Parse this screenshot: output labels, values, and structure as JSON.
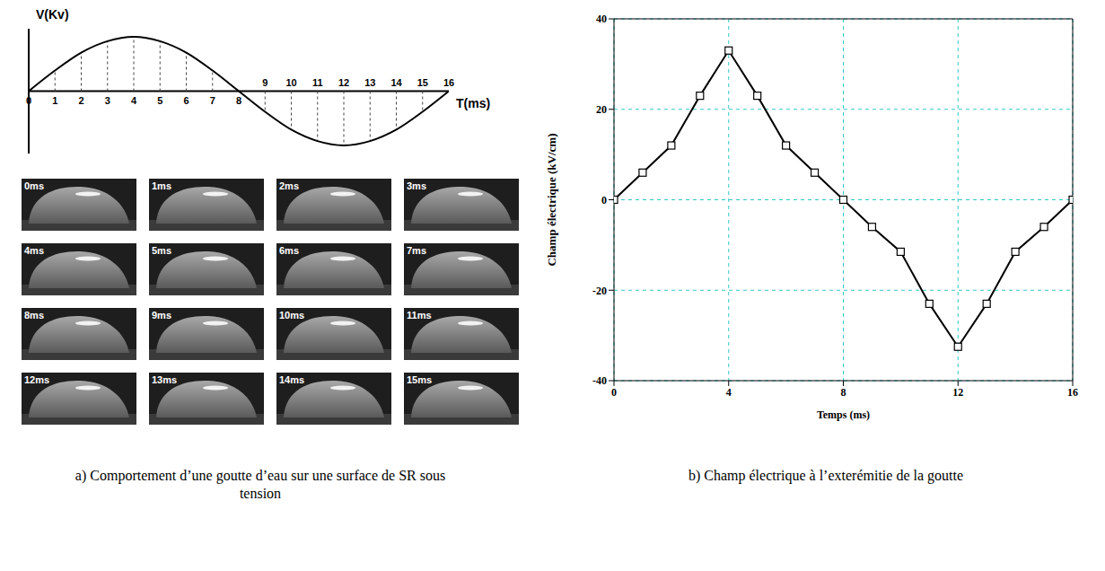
{
  "chart_data": [
    {
      "type": "line",
      "y_label": "V(Kv)",
      "x_label": "T(ms)",
      "x": [
        0,
        1,
        2,
        3,
        4,
        5,
        6,
        7,
        8,
        9,
        10,
        11,
        12,
        13,
        14,
        15,
        16
      ],
      "values": [
        0,
        0.38,
        0.71,
        0.92,
        1,
        0.92,
        0.71,
        0.38,
        0,
        -0.38,
        -0.71,
        -0.92,
        -1,
        -0.92,
        -0.71,
        -0.38,
        0
      ],
      "xlim": [
        0,
        16
      ],
      "xticks": [
        0,
        1,
        2,
        3,
        4,
        5,
        6,
        7,
        8,
        9,
        10,
        11,
        12,
        13,
        14,
        15,
        16
      ],
      "ylim": [
        -1.15,
        1.15
      ],
      "tick_labels": "x",
      "color": "#000000"
    },
    {
      "type": "line",
      "x_label": "Temps (ms)",
      "y_label": "Champ électrique (kV/cm)",
      "x": [
        0,
        1,
        2,
        3,
        4,
        5,
        6,
        7,
        8,
        9,
        10,
        11,
        12,
        13,
        14,
        15,
        16
      ],
      "values": [
        0,
        6,
        12,
        23,
        33,
        23,
        12,
        6,
        0,
        -6,
        -11.5,
        -23,
        -32.5,
        -23,
        -11.5,
        -6,
        0
      ],
      "xlim": [
        0,
        16
      ],
      "xticks": [
        0,
        4,
        8,
        12,
        16
      ],
      "ylim": [
        -40,
        40
      ],
      "yticks": [
        -40,
        -20,
        0,
        20,
        40
      ],
      "grid": true,
      "color": "#000000",
      "marker": "square"
    }
  ],
  "photos": {
    "labels": [
      "0ms",
      "1ms",
      "2ms",
      "3ms",
      "4ms",
      "5ms",
      "6ms",
      "7ms",
      "8ms",
      "9ms",
      "10ms",
      "11ms",
      "12ms",
      "13ms",
      "14ms",
      "15ms"
    ]
  },
  "captions": [
    "a)    Comportement d’une goutte d’eau sur une surface de SR sous tension",
    "b)    Champ électrique à l’exterémitie de la goutte"
  ]
}
